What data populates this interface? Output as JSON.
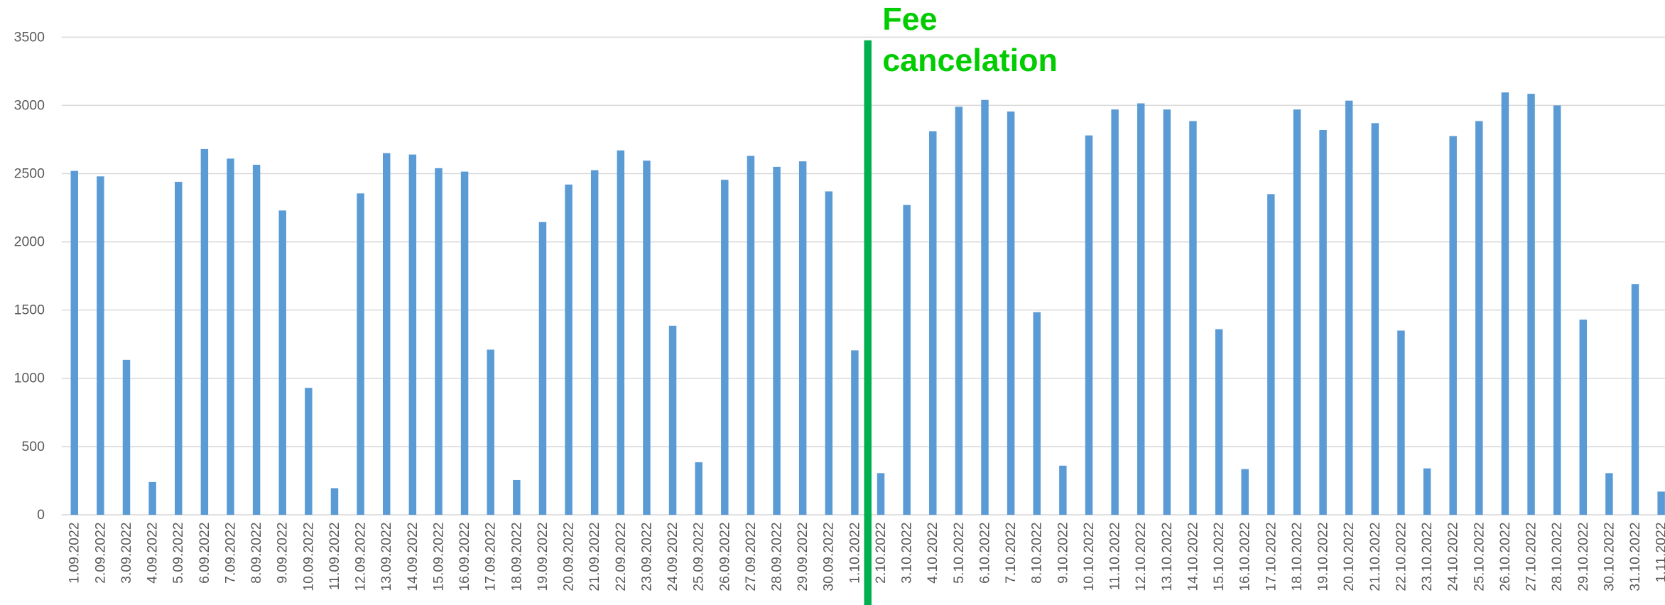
{
  "chart_data": {
    "type": "bar",
    "categories": [
      "1.09.2022",
      "2.09.2022",
      "3.09.2022",
      "4.09.2022",
      "5.09.2022",
      "6.09.2022",
      "7.09.2022",
      "8.09.2022",
      "9.09.2022",
      "10.09.2022",
      "11.09.2022",
      "12.09.2022",
      "13.09.2022",
      "14.09.2022",
      "15.09.2022",
      "16.09.2022",
      "17.09.2022",
      "18.09.2022",
      "19.09.2022",
      "20.09.2022",
      "21.09.2022",
      "22.09.2022",
      "23.09.2022",
      "24.09.2022",
      "25.09.2022",
      "26.09.2022",
      "27.09.2022",
      "28.09.2022",
      "29.09.2022",
      "30.09.2022",
      "1.10.2022",
      "2.10.2022",
      "3.10.2022",
      "4.10.2022",
      "5.10.2022",
      "6.10.2022",
      "7.10.2022",
      "8.10.2022",
      "9.10.2022",
      "10.10.2022",
      "11.10.2022",
      "12.10.2022",
      "13.10.2022",
      "14.10.2022",
      "15.10.2022",
      "16.10.2022",
      "17.10.2022",
      "18.10.2022",
      "19.10.2022",
      "20.10.2022",
      "21.10.2022",
      "22.10.2022",
      "23.10.2022",
      "24.10.2022",
      "25.10.2022",
      "26.10.2022",
      "27.10.2022",
      "28.10.2022",
      "29.10.2022",
      "30.10.2022",
      "31.10.2022",
      "1.11.2022"
    ],
    "values": [
      2520,
      2480,
      1135,
      240,
      2440,
      2680,
      2610,
      2565,
      2230,
      930,
      195,
      2355,
      2650,
      2640,
      2540,
      2515,
      1210,
      255,
      2145,
      2420,
      2525,
      2670,
      2595,
      1385,
      385,
      2455,
      2630,
      2550,
      2590,
      2370,
      1205,
      305,
      2270,
      2810,
      2990,
      3040,
      2955,
      1485,
      360,
      2780,
      2970,
      3015,
      2970,
      2885,
      1360,
      335,
      2350,
      2970,
      2820,
      3035,
      2870,
      1350,
      340,
      2775,
      2885,
      3095,
      3085,
      3000,
      1430,
      305,
      1690,
      170
    ],
    "color": "#5b9bd5",
    "ylim": [
      0,
      3500
    ],
    "yticks": [
      0,
      500,
      1000,
      1500,
      2000,
      2500,
      3000,
      3500
    ],
    "grid": true,
    "annotation": [
      "Fee",
      "cancelation"
    ],
    "annotation_color": "#00b050"
  }
}
